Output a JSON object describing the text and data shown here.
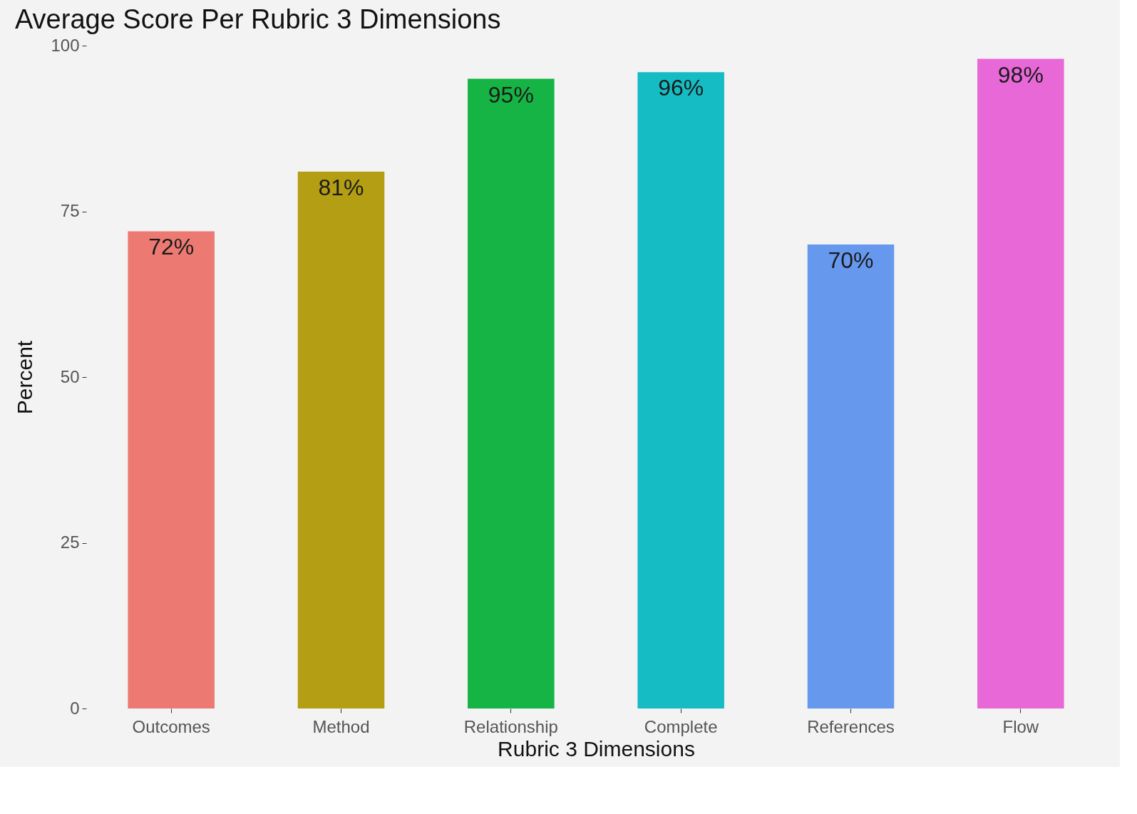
{
  "chart_data": {
    "type": "bar",
    "title": "Average Score Per Rubric 3 Dimensions",
    "xlabel": "Rubric 3 Dimensions",
    "ylabel": "Percent",
    "categories": [
      "Outcomes",
      "Method",
      "Relationship",
      "Complete",
      "References",
      "Flow"
    ],
    "values": [
      72,
      81,
      95,
      96,
      70,
      98
    ],
    "colors": [
      "#ec7a72",
      "#b39e14",
      "#16b444",
      "#16bcc4",
      "#6699ee",
      "#e868d8"
    ],
    "value_labels": [
      "72%",
      "81%",
      "95%",
      "96%",
      "70%",
      "98%"
    ],
    "ylim": [
      0,
      100
    ],
    "yticks": [
      0,
      25,
      50,
      75,
      100
    ],
    "grid": false
  }
}
